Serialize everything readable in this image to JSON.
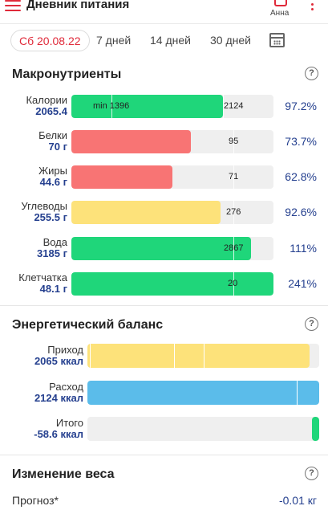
{
  "header": {
    "title": "Дневник питания",
    "user": "Анна"
  },
  "tabs": [
    {
      "label": "Сб 20.08.22",
      "active": true
    },
    {
      "label": "7 дней"
    },
    {
      "label": "14 дней"
    },
    {
      "label": "30 дней"
    }
  ],
  "macros": {
    "title": "Макронутриенты",
    "help": "?",
    "rows": [
      {
        "name": "Калории",
        "amount": "2065.4",
        "min_label": "min 1396",
        "target_label": "2124",
        "percent_label": "97.2%",
        "fill_fraction": 0.75,
        "color": "#1fd67a"
      },
      {
        "name": "Белки",
        "amount": "70 г",
        "target_label": "95",
        "percent_label": "73.7%",
        "fill_fraction": 0.59,
        "color": "#f87474"
      },
      {
        "name": "Жиры",
        "amount": "44.6 г",
        "target_label": "71",
        "percent_label": "62.8%",
        "fill_fraction": 0.5,
        "color": "#f87474"
      },
      {
        "name": "Углеводы",
        "amount": "255.5 г",
        "target_label": "276",
        "percent_label": "92.6%",
        "fill_fraction": 0.74,
        "color": "#fde27a"
      },
      {
        "name": "Вода",
        "amount": "3185 г",
        "target_label": "2867",
        "percent_label": "111%",
        "fill_fraction": 0.89,
        "color": "#1fd67a"
      },
      {
        "name": "Клетчатка",
        "amount": "48.1 г",
        "target_label": "20",
        "percent_label": "241%",
        "fill_fraction": 1.0,
        "color": "#1fd67a"
      }
    ]
  },
  "energy": {
    "title": "Энергетический баланс",
    "help": "?",
    "rows": [
      {
        "name": "Приход",
        "amount": "2065 ккал",
        "fill_fraction": 0.96,
        "color": "#fde27a"
      },
      {
        "name": "Расход",
        "amount": "2124 ккал",
        "fill_fraction": 1.0,
        "color": "#5bbcea"
      },
      {
        "name": "Итого",
        "amount": "-58.6 ккал",
        "fill_fraction": 0.03,
        "color": "#1fd67a"
      }
    ]
  },
  "weight": {
    "title": "Изменение веса",
    "help": "?",
    "forecast_label": "Прогноз*",
    "forecast_value": "-0.01 кг"
  }
}
